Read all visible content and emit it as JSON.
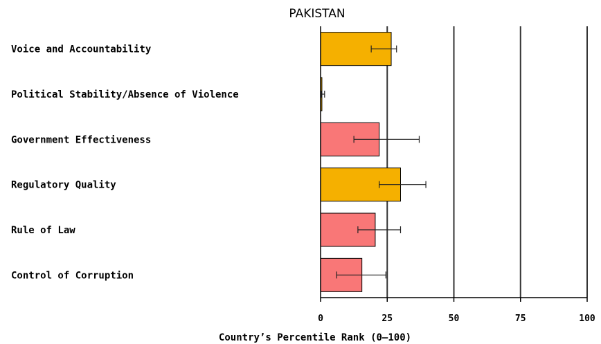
{
  "chart_data": {
    "type": "bar",
    "orientation": "horizontal",
    "title": "PAKISTAN",
    "xlabel": "Country’s Percentile Rank (0–100)",
    "xlim": [
      0,
      100
    ],
    "ticks": [
      "0",
      "25",
      "50",
      "75",
      "100"
    ],
    "tick_values": [
      0,
      25,
      50,
      75,
      100
    ],
    "categories": [
      "Voice and Accountability",
      "Political Stability/Absence of Violence",
      "Government Effectiveness",
      "Regulatory Quality",
      "Rule of Law",
      "Control of Corruption"
    ],
    "values": [
      26.5,
      0.5,
      22,
      30,
      20.5,
      15.5
    ],
    "error_low": [
      19,
      0.3,
      12.5,
      22,
      14,
      6
    ],
    "error_high": [
      28.5,
      1.5,
      37,
      39.5,
      30,
      24.5
    ],
    "bar_colors": [
      "#f5b000",
      "#f5b000",
      "#f97777",
      "#f5b000",
      "#f97777",
      "#f97777"
    ],
    "grid": "vertical",
    "legend": "none"
  }
}
